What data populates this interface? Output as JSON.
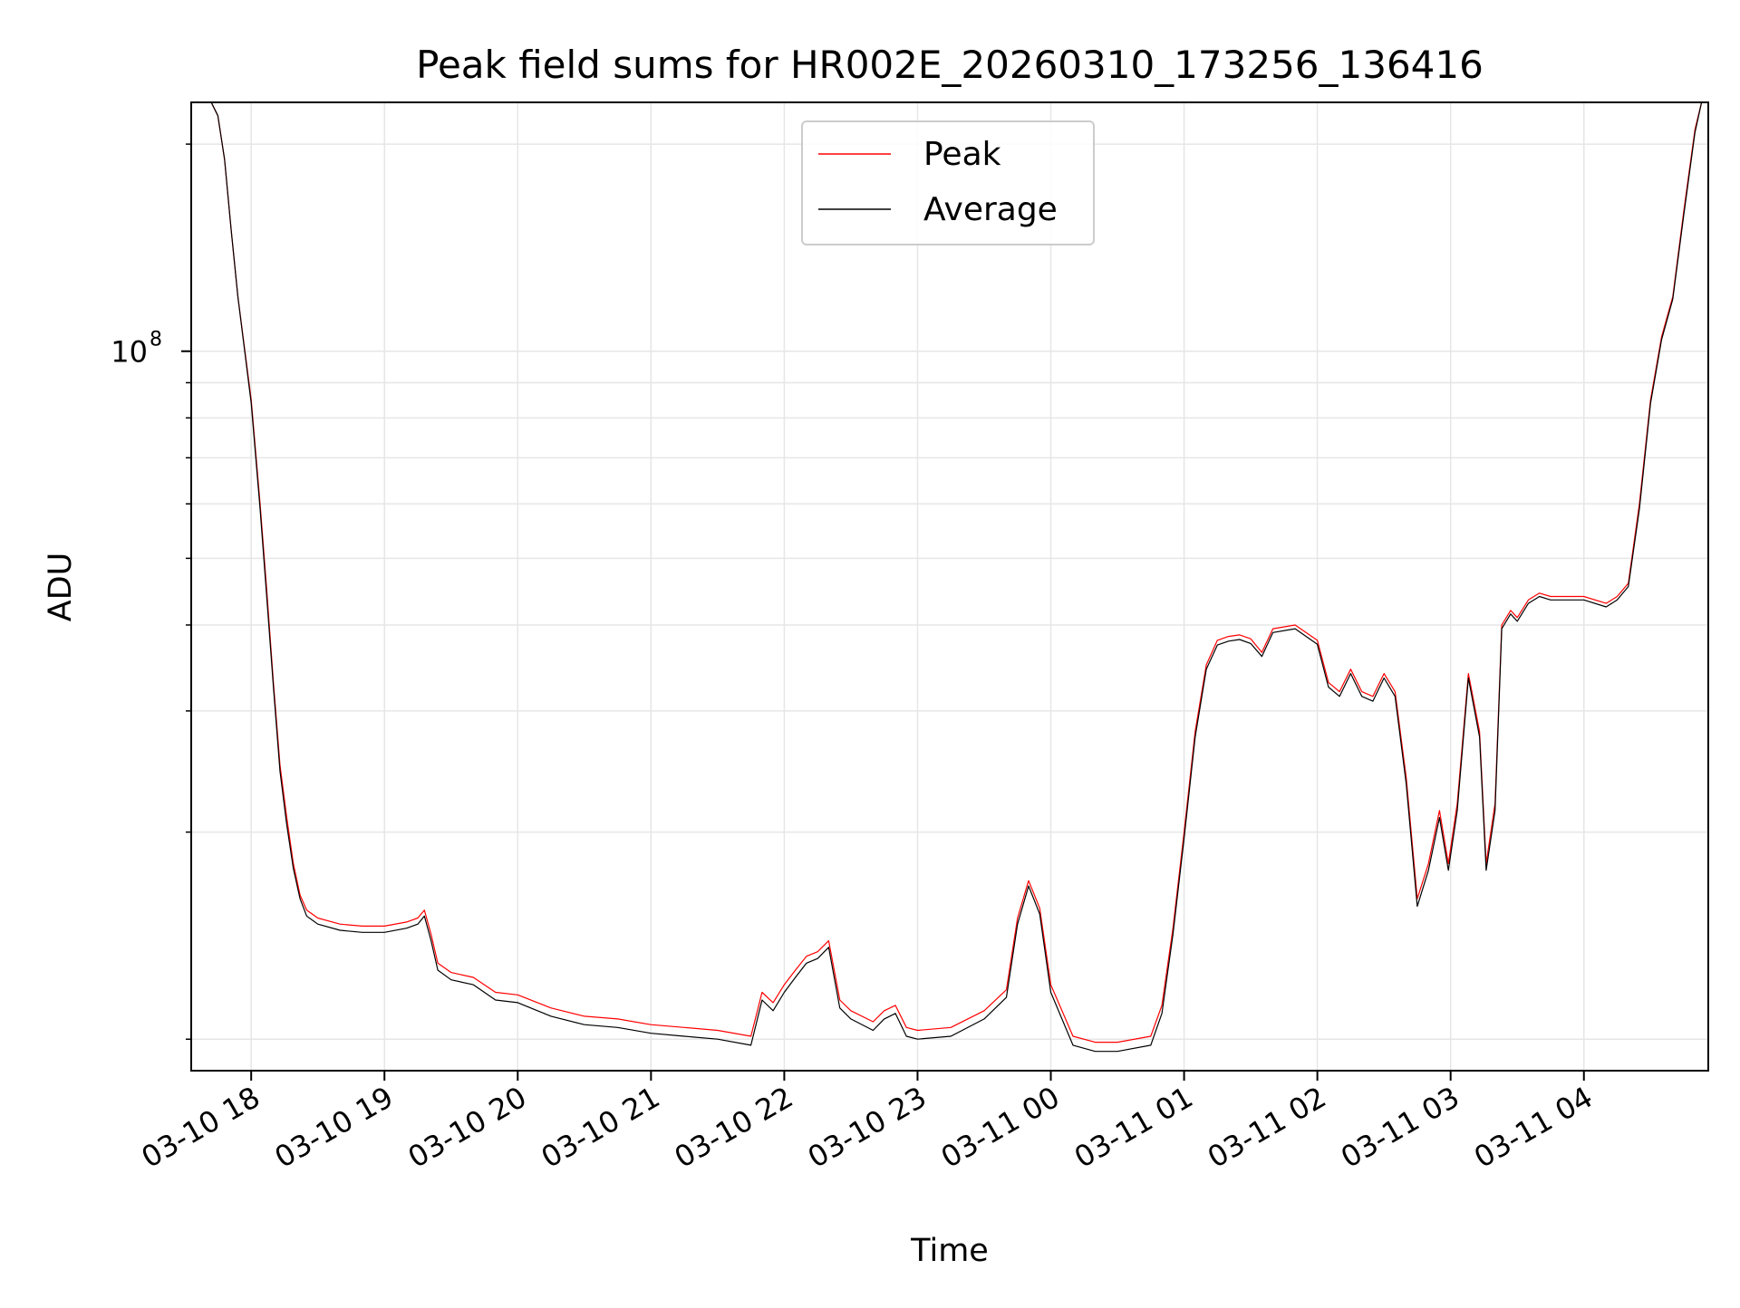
{
  "chart_data": {
    "type": "line",
    "title": "Peak field sums for HR002E_20260310_173256_136416",
    "xlabel": "Time",
    "ylabel": "ADU",
    "yscale": "log",
    "grid": true,
    "legend_position": "upper center",
    "xlim": [
      "2026-03-10T17:33:00",
      "2026-03-11T04:56:00"
    ],
    "ylim": [
      9000000,
      230000000
    ],
    "x_ticks": [
      {
        "t": "2026-03-10T18:00:00",
        "label": "03-10 18"
      },
      {
        "t": "2026-03-10T19:00:00",
        "label": "03-10 19"
      },
      {
        "t": "2026-03-10T20:00:00",
        "label": "03-10 20"
      },
      {
        "t": "2026-03-10T21:00:00",
        "label": "03-10 21"
      },
      {
        "t": "2026-03-10T22:00:00",
        "label": "03-10 22"
      },
      {
        "t": "2026-03-10T23:00:00",
        "label": "03-10 23"
      },
      {
        "t": "2026-03-11T00:00:00",
        "label": "03-11 00"
      },
      {
        "t": "2026-03-11T01:00:00",
        "label": "03-11 01"
      },
      {
        "t": "2026-03-11T02:00:00",
        "label": "03-11 02"
      },
      {
        "t": "2026-03-11T03:00:00",
        "label": "03-11 03"
      },
      {
        "t": "2026-03-11T04:00:00",
        "label": "03-11 04"
      }
    ],
    "y_major_ticks": [
      {
        "value": 100000000,
        "base": "10",
        "exp": "8"
      }
    ],
    "y_minor_ticks": [
      10000000,
      20000000,
      30000000,
      40000000,
      50000000,
      60000000,
      70000000,
      80000000,
      90000000,
      200000000
    ],
    "series": [
      {
        "name": "Peak",
        "color": "#ff0000",
        "linewidth": 1.2
      },
      {
        "name": "Average",
        "color": "#000000",
        "linewidth": 1.2
      }
    ],
    "x": [
      "2026-03-10T17:33:00",
      "2026-03-10T17:42:00",
      "2026-03-10T17:45:00",
      "2026-03-10T17:48:00",
      "2026-03-10T17:51:00",
      "2026-03-10T17:54:00",
      "2026-03-10T18:00:00",
      "2026-03-10T18:04:00",
      "2026-03-10T18:07:00",
      "2026-03-10T18:10:00",
      "2026-03-10T18:13:00",
      "2026-03-10T18:16:00",
      "2026-03-10T18:19:00",
      "2026-03-10T18:22:00",
      "2026-03-10T18:25:00",
      "2026-03-10T18:30:00",
      "2026-03-10T18:40:00",
      "2026-03-10T18:50:00",
      "2026-03-10T19:00:00",
      "2026-03-10T19:10:00",
      "2026-03-10T19:15:00",
      "2026-03-10T19:18:00",
      "2026-03-10T19:21:00",
      "2026-03-10T19:24:00",
      "2026-03-10T19:30:00",
      "2026-03-10T19:40:00",
      "2026-03-10T19:50:00",
      "2026-03-10T20:00:00",
      "2026-03-10T20:15:00",
      "2026-03-10T20:30:00",
      "2026-03-10T20:45:00",
      "2026-03-10T21:00:00",
      "2026-03-10T21:15:00",
      "2026-03-10T21:30:00",
      "2026-03-10T21:45:00",
      "2026-03-10T21:50:00",
      "2026-03-10T21:55:00",
      "2026-03-10T22:00:00",
      "2026-03-10T22:05:00",
      "2026-03-10T22:10:00",
      "2026-03-10T22:15:00",
      "2026-03-10T22:20:00",
      "2026-03-10T22:25:00",
      "2026-03-10T22:30:00",
      "2026-03-10T22:40:00",
      "2026-03-10T22:45:00",
      "2026-03-10T22:50:00",
      "2026-03-10T22:55:00",
      "2026-03-10T23:00:00",
      "2026-03-10T23:15:00",
      "2026-03-10T23:30:00",
      "2026-03-10T23:40:00",
      "2026-03-10T23:45:00",
      "2026-03-10T23:50:00",
      "2026-03-10T23:55:00",
      "2026-03-11T00:00:00",
      "2026-03-11T00:10:00",
      "2026-03-11T00:20:00",
      "2026-03-11T00:30:00",
      "2026-03-11T00:45:00",
      "2026-03-11T00:50:00",
      "2026-03-11T00:55:00",
      "2026-03-11T01:00:00",
      "2026-03-11T01:05:00",
      "2026-03-11T01:10:00",
      "2026-03-11T01:15:00",
      "2026-03-11T01:20:00",
      "2026-03-11T01:25:00",
      "2026-03-11T01:30:00",
      "2026-03-11T01:35:00",
      "2026-03-11T01:40:00",
      "2026-03-11T01:50:00",
      "2026-03-11T02:00:00",
      "2026-03-11T02:05:00",
      "2026-03-11T02:10:00",
      "2026-03-11T02:15:00",
      "2026-03-11T02:20:00",
      "2026-03-11T02:25:00",
      "2026-03-11T02:30:00",
      "2026-03-11T02:35:00",
      "2026-03-11T02:40:00",
      "2026-03-11T02:45:00",
      "2026-03-11T02:50:00",
      "2026-03-11T02:55:00",
      "2026-03-11T02:59:00",
      "2026-03-11T03:03:00",
      "2026-03-11T03:08:00",
      "2026-03-11T03:13:00",
      "2026-03-11T03:16:00",
      "2026-03-11T03:20:00",
      "2026-03-11T03:23:00",
      "2026-03-11T03:27:00",
      "2026-03-11T03:30:00",
      "2026-03-11T03:35:00",
      "2026-03-11T03:40:00",
      "2026-03-11T03:45:00",
      "2026-03-11T04:00:00",
      "2026-03-11T04:10:00",
      "2026-03-11T04:15:00",
      "2026-03-11T04:20:00",
      "2026-03-11T04:25:00",
      "2026-03-11T04:30:00",
      "2026-03-11T04:35:00",
      "2026-03-11T04:40:00",
      "2026-03-11T04:45:00",
      "2026-03-11T04:50:00",
      "2026-03-11T04:53:00",
      "2026-03-11T04:56:00"
    ],
    "peak": [
      230000000,
      230000000,
      220000000,
      190000000,
      150000000,
      120000000,
      85000000,
      60000000,
      45000000,
      33000000,
      25000000,
      21000000,
      18000000,
      16200000,
      15400000,
      15000000,
      14700000,
      14600000,
      14600000,
      14800000,
      15000000,
      15400000,
      14200000,
      12900000,
      12500000,
      12300000,
      11700000,
      11600000,
      11100000,
      10800000,
      10700000,
      10500000,
      10400000,
      10300000,
      10100000,
      11700000,
      11300000,
      12000000,
      12600000,
      13200000,
      13400000,
      13900000,
      11400000,
      11000000,
      10600000,
      11000000,
      11200000,
      10400000,
      10300000,
      10400000,
      11000000,
      11800000,
      15000000,
      17000000,
      15500000,
      12000000,
      10100000,
      9900000,
      9900000,
      10100000,
      11200000,
      14500000,
      20000000,
      28000000,
      35000000,
      38000000,
      38500000,
      38700000,
      38200000,
      36500000,
      39500000,
      40000000,
      38000000,
      33000000,
      32000000,
      34500000,
      32000000,
      31500000,
      34000000,
      32000000,
      24000000,
      16000000,
      18000000,
      21500000,
      18000000,
      22000000,
      34000000,
      28000000,
      18000000,
      22000000,
      40000000,
      42000000,
      41000000,
      43500000,
      44500000,
      44000000,
      44000000,
      43000000,
      44000000,
      46000000,
      60000000,
      85000000,
      105000000,
      120000000,
      160000000,
      210000000,
      230000000,
      230000000
    ],
    "average": [
      230000000,
      230000000,
      220000000,
      190000000,
      150000000,
      120000000,
      84000000,
      59000000,
      44000000,
      32500000,
      24500000,
      20500000,
      17700000,
      16000000,
      15100000,
      14700000,
      14400000,
      14300000,
      14300000,
      14500000,
      14700000,
      15100000,
      13900000,
      12600000,
      12200000,
      12000000,
      11400000,
      11300000,
      10800000,
      10500000,
      10400000,
      10200000,
      10100000,
      10000000,
      9800000,
      11400000,
      11000000,
      11700000,
      12300000,
      12900000,
      13100000,
      13600000,
      11100000,
      10700000,
      10300000,
      10700000,
      10900000,
      10100000,
      10000000,
      10100000,
      10700000,
      11500000,
      14700000,
      16700000,
      15200000,
      11700000,
      9800000,
      9600000,
      9600000,
      9800000,
      10900000,
      14200000,
      19600000,
      27500000,
      34500000,
      37400000,
      37900000,
      38100000,
      37600000,
      36000000,
      39000000,
      39500000,
      37500000,
      32500000,
      31500000,
      34000000,
      31500000,
      31000000,
      33500000,
      31500000,
      23500000,
      15600000,
      17600000,
      21000000,
      17600000,
      21500000,
      33500000,
      27500000,
      17600000,
      21500000,
      39500000,
      41500000,
      40500000,
      43000000,
      44000000,
      43500000,
      43500000,
      42500000,
      43500000,
      45500000,
      59000000,
      84000000,
      104000000,
      119000000,
      158000000,
      208000000,
      230000000,
      230000000
    ]
  }
}
